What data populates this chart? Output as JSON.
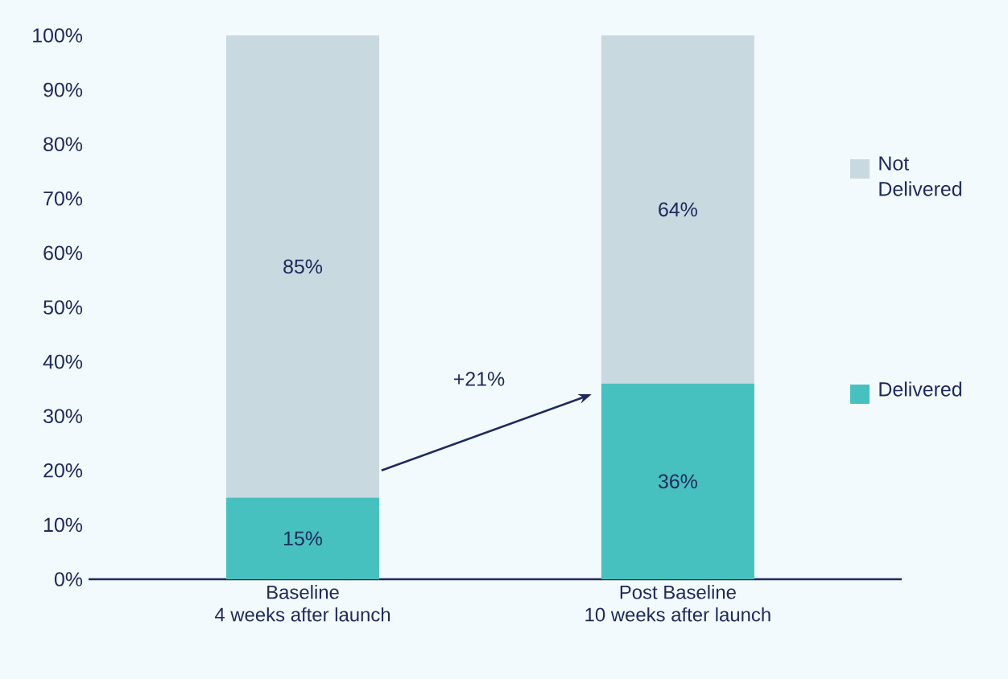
{
  "chart_data": {
    "type": "bar",
    "stacked": true,
    "categories": [
      "Baseline\n4 weeks after launch",
      "Post Baseline\n10 weeks after launch"
    ],
    "series": [
      {
        "name": "Delivered",
        "color": "#47c1bf",
        "values": [
          15,
          36
        ],
        "value_labels": [
          "15%",
          "36%"
        ]
      },
      {
        "name": "Not Delivered",
        "color": "#c8d9df",
        "values": [
          85,
          64
        ],
        "value_labels": [
          "85%",
          "64%"
        ]
      }
    ],
    "ylim": [
      0,
      100
    ],
    "yticks": [
      {
        "value": 0,
        "label": "0%"
      },
      {
        "value": 10,
        "label": "10%"
      },
      {
        "value": 20,
        "label": "20%"
      },
      {
        "value": 30,
        "label": "30%"
      },
      {
        "value": 40,
        "label": "40%"
      },
      {
        "value": 50,
        "label": "50%"
      },
      {
        "value": 60,
        "label": "60%"
      },
      {
        "value": 70,
        "label": "70%"
      },
      {
        "value": 80,
        "label": "80%"
      },
      {
        "value": 90,
        "label": "90%"
      },
      {
        "value": 100,
        "label": "100%"
      }
    ],
    "legend": "right",
    "annotations": [
      "+21%"
    ]
  }
}
